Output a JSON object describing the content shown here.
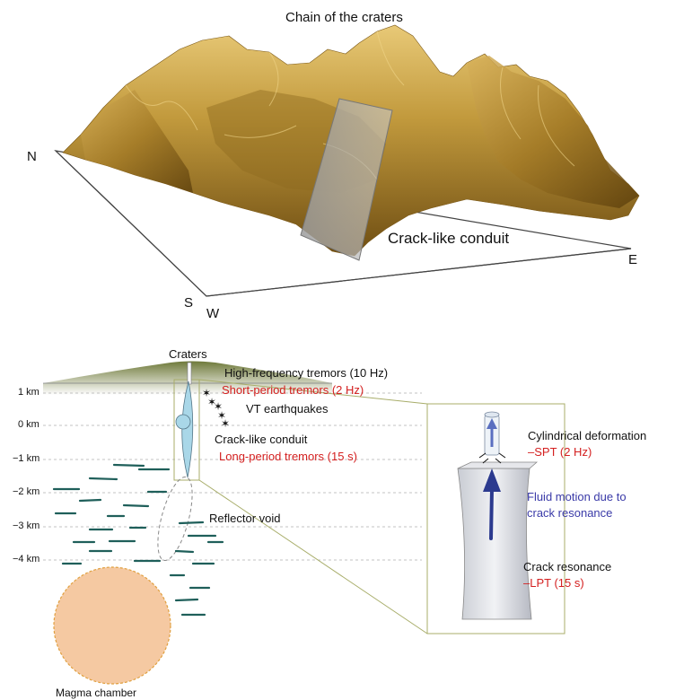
{
  "top": {
    "title": "Chain of the craters",
    "conduit_label": "Crack-like conduit",
    "directions": {
      "n": "N",
      "s": "S",
      "w": "W",
      "e": "E"
    }
  },
  "section": {
    "craters": "Craters",
    "hf_tremors": "High-frequency tremors (10 Hz)",
    "sp_tremors": "Short-period tremors (2 Hz)",
    "vt": "VT earthquakes",
    "conduit": "Crack-like conduit",
    "lp_tremors": "Long-period tremors (15 s)",
    "reflector": "Reflector void",
    "magma": "Magma chamber",
    "depths": [
      "1 km",
      "0 km",
      "−1 km",
      "−2 km",
      "−3 km",
      "−4 km"
    ]
  },
  "inset": {
    "cyl_def": "Cylindrical deformation",
    "spt": "–SPT (2 Hz)",
    "fluid_line1": "Fluid motion due to",
    "fluid_line2": "crack resonance",
    "crack_res": "Crack resonance",
    "lpt": "–LPT (15 s)"
  },
  "colors": {
    "terrain": "#b58a2e",
    "red_text": "#d42020",
    "blue_text": "#3a3aa8",
    "magma": "#f5c9a2",
    "dash": "#1f5f5a",
    "inset_frame": "#a8ad6a"
  }
}
